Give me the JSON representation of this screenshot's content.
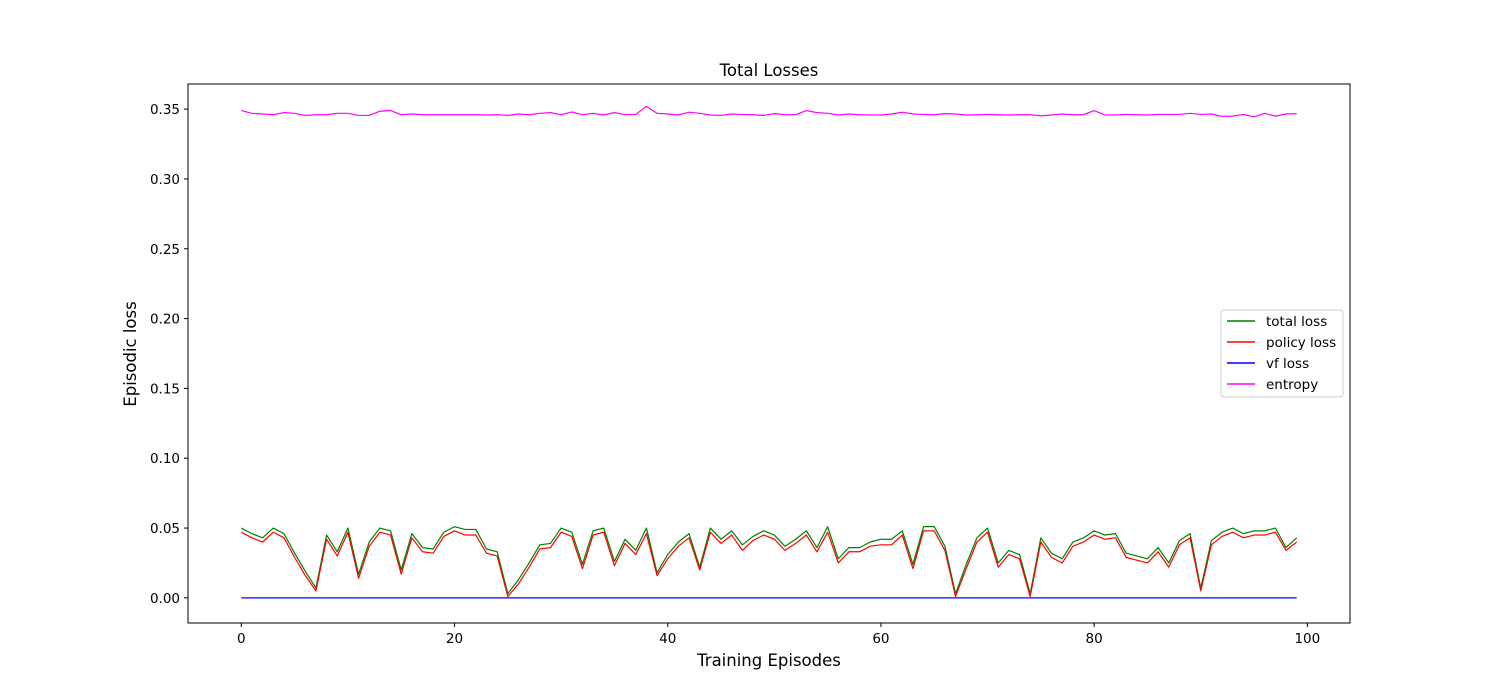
{
  "chart_data": {
    "type": "line",
    "title": "Total Losses",
    "xlabel": "Training Episodes",
    "ylabel": "Episodic loss",
    "xlim": [
      -5,
      104
    ],
    "ylim": [
      -0.018,
      0.368
    ],
    "xticks": [
      0,
      20,
      40,
      60,
      80,
      100
    ],
    "xtick_labels": [
      "0",
      "20",
      "40",
      "60",
      "80",
      "100"
    ],
    "yticks": [
      0.0,
      0.05,
      0.1,
      0.15,
      0.2,
      0.25,
      0.3,
      0.35
    ],
    "ytick_labels": [
      "0.00",
      "0.05",
      "0.10",
      "0.15",
      "0.20",
      "0.25",
      "0.30",
      "0.35"
    ],
    "grid": false,
    "legend_position": "center-right",
    "x": [
      0,
      1,
      2,
      3,
      4,
      5,
      6,
      7,
      8,
      9,
      10,
      11,
      12,
      13,
      14,
      15,
      16,
      17,
      18,
      19,
      20,
      21,
      22,
      23,
      24,
      25,
      26,
      27,
      28,
      29,
      30,
      31,
      32,
      33,
      34,
      35,
      36,
      37,
      38,
      39,
      40,
      41,
      42,
      43,
      44,
      45,
      46,
      47,
      48,
      49,
      50,
      51,
      52,
      53,
      54,
      55,
      56,
      57,
      58,
      59,
      60,
      61,
      62,
      63,
      64,
      65,
      66,
      67,
      68,
      69,
      70,
      71,
      72,
      73,
      74,
      75,
      76,
      77,
      78,
      79,
      80,
      81,
      82,
      83,
      84,
      85,
      86,
      87,
      88,
      89,
      90,
      91,
      92,
      93,
      94,
      95,
      96,
      97,
      98,
      99
    ],
    "series": [
      {
        "name": "total loss",
        "color": "#008000",
        "values": [
          0.05,
          0.046,
          0.043,
          0.05,
          0.046,
          0.032,
          0.019,
          0.007,
          0.045,
          0.033,
          0.05,
          0.017,
          0.04,
          0.05,
          0.048,
          0.02,
          0.046,
          0.036,
          0.035,
          0.047,
          0.051,
          0.049,
          0.049,
          0.035,
          0.033,
          0.003,
          0.013,
          0.025,
          0.038,
          0.039,
          0.05,
          0.047,
          0.024,
          0.048,
          0.05,
          0.026,
          0.042,
          0.034,
          0.05,
          0.018,
          0.031,
          0.04,
          0.046,
          0.022,
          0.05,
          0.042,
          0.048,
          0.038,
          0.044,
          0.048,
          0.045,
          0.037,
          0.042,
          0.048,
          0.036,
          0.051,
          0.028,
          0.036,
          0.036,
          0.04,
          0.042,
          0.042,
          0.048,
          0.024,
          0.051,
          0.051,
          0.037,
          0.003,
          0.024,
          0.043,
          0.05,
          0.025,
          0.034,
          0.031,
          0.003,
          0.043,
          0.032,
          0.028,
          0.04,
          0.043,
          0.048,
          0.045,
          0.046,
          0.032,
          0.03,
          0.028,
          0.036,
          0.025,
          0.041,
          0.046,
          0.007,
          0.041,
          0.047,
          0.05,
          0.046,
          0.048,
          0.048,
          0.05,
          0.036,
          0.043
        ]
      },
      {
        "name": "policy loss",
        "color": "#ff0000",
        "values": [
          0.047,
          0.043,
          0.04,
          0.047,
          0.043,
          0.029,
          0.016,
          0.005,
          0.042,
          0.03,
          0.047,
          0.014,
          0.037,
          0.047,
          0.045,
          0.017,
          0.043,
          0.033,
          0.032,
          0.044,
          0.048,
          0.045,
          0.045,
          0.032,
          0.03,
          0.001,
          0.01,
          0.022,
          0.035,
          0.036,
          0.047,
          0.044,
          0.021,
          0.045,
          0.047,
          0.023,
          0.039,
          0.031,
          0.046,
          0.016,
          0.028,
          0.037,
          0.043,
          0.02,
          0.047,
          0.039,
          0.045,
          0.034,
          0.041,
          0.045,
          0.042,
          0.034,
          0.039,
          0.045,
          0.033,
          0.047,
          0.025,
          0.033,
          0.033,
          0.037,
          0.038,
          0.038,
          0.045,
          0.021,
          0.048,
          0.048,
          0.034,
          0.001,
          0.021,
          0.04,
          0.047,
          0.022,
          0.031,
          0.028,
          0.001,
          0.04,
          0.029,
          0.025,
          0.037,
          0.04,
          0.045,
          0.042,
          0.043,
          0.029,
          0.027,
          0.025,
          0.033,
          0.022,
          0.038,
          0.043,
          0.005,
          0.038,
          0.044,
          0.047,
          0.043,
          0.045,
          0.045,
          0.047,
          0.034,
          0.04
        ]
      },
      {
        "name": "vf loss",
        "color": "#0000ff",
        "values": [
          0,
          0,
          0,
          0,
          0,
          0,
          0,
          0,
          0,
          0,
          0,
          0,
          0,
          0,
          0,
          0,
          0,
          0,
          0,
          0,
          0,
          0,
          0,
          0,
          0,
          0,
          0,
          0,
          0,
          0,
          0,
          0,
          0,
          0,
          0,
          0,
          0,
          0,
          0,
          0,
          0,
          0,
          0,
          0,
          0,
          0,
          0,
          0,
          0,
          0,
          0,
          0,
          0,
          0,
          0,
          0,
          0,
          0,
          0,
          0,
          0,
          0,
          0,
          0,
          0,
          0,
          0,
          0,
          0,
          0,
          0,
          0,
          0,
          0,
          0,
          0,
          0,
          0,
          0,
          0,
          0,
          0,
          0,
          0,
          0,
          0,
          0,
          0,
          0,
          0,
          0,
          0,
          0,
          0,
          0,
          0,
          0,
          0,
          0,
          0
        ]
      },
      {
        "name": "entropy",
        "color": "#ff00ff",
        "values": [
          0.349,
          0.347,
          0.3465,
          0.346,
          0.3475,
          0.347,
          0.3455,
          0.346,
          0.346,
          0.347,
          0.347,
          0.3455,
          0.3455,
          0.3485,
          0.349,
          0.346,
          0.3465,
          0.346,
          0.346,
          0.346,
          0.346,
          0.346,
          0.346,
          0.3458,
          0.346,
          0.3455,
          0.3465,
          0.346,
          0.347,
          0.3475,
          0.346,
          0.348,
          0.346,
          0.347,
          0.3458,
          0.3475,
          0.346,
          0.3462,
          0.352,
          0.347,
          0.3465,
          0.3458,
          0.3478,
          0.347,
          0.3458,
          0.3455,
          0.3465,
          0.3462,
          0.346,
          0.3455,
          0.3468,
          0.346,
          0.346,
          0.349,
          0.3475,
          0.347,
          0.3458,
          0.3465,
          0.346,
          0.3458,
          0.3458,
          0.3465,
          0.3478,
          0.3465,
          0.3462,
          0.346,
          0.3468,
          0.3465,
          0.3458,
          0.346,
          0.3462,
          0.346,
          0.3458,
          0.346,
          0.346,
          0.3452,
          0.3458,
          0.3465,
          0.346,
          0.346,
          0.349,
          0.3458,
          0.3458,
          0.3462,
          0.346,
          0.3458,
          0.3462,
          0.3462,
          0.3462,
          0.347,
          0.3462,
          0.3465,
          0.3448,
          0.345,
          0.3462,
          0.3445,
          0.347,
          0.345,
          0.3465,
          0.3468
        ]
      }
    ]
  }
}
